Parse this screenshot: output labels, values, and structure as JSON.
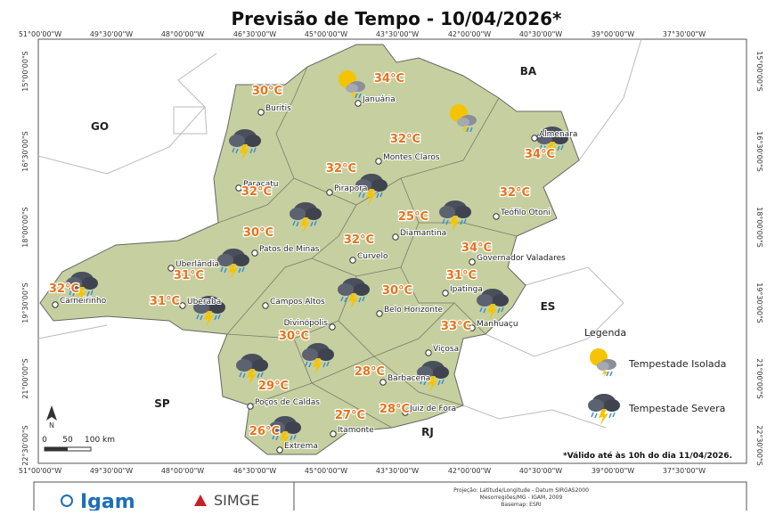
{
  "title": "Previsão de Tempo - 10/04/2026*",
  "longitude_labels": [
    "51°00'00\"W",
    "49°30'00\"W",
    "48°00'00\"W",
    "46°30'00\"W",
    "45°00'00\"W",
    "43°30'00\"W",
    "42°00'00\"W",
    "40°30'00\"W",
    "39°00'00\"W",
    "37°30'00\"W"
  ],
  "latitude_labels": [
    "15°00'00\"S",
    "16°30'00\"S",
    "18°00'00\"S",
    "19°30'00\"S",
    "21°00'00\"S",
    "22°30'00\"S"
  ],
  "states": [
    "GO",
    "BA",
    "ES",
    "SP",
    "RJ"
  ],
  "cities": [
    {
      "name": "Buritis",
      "temp": "30°C"
    },
    {
      "name": "Januária",
      "temp": "34°C"
    },
    {
      "name": "Almenara",
      "temp": "34°C"
    },
    {
      "name": "Montes Claros",
      "temp": "32°C"
    },
    {
      "name": "Pirapora",
      "temp": "32°C"
    },
    {
      "name": "Paracatu",
      "temp": "32°C"
    },
    {
      "name": "Teófilo Otoni",
      "temp": "32°C"
    },
    {
      "name": "Diamantina",
      "temp": "25°C"
    },
    {
      "name": "Patos de Minas",
      "temp": "30°C"
    },
    {
      "name": "Curvelo",
      "temp": "32°C"
    },
    {
      "name": "Governador Valadares",
      "temp": "34°C"
    },
    {
      "name": "Uberlândia",
      "temp": "31°C"
    },
    {
      "name": "Carneirinho",
      "temp": "32°C"
    },
    {
      "name": "Ipatinga",
      "temp": "31°C"
    },
    {
      "name": "Campos Altos"
    },
    {
      "name": "Uberaba",
      "temp": "31°C"
    },
    {
      "name": "Belo Horizonte",
      "temp": "30°C"
    },
    {
      "name": "Divinópolis"
    },
    {
      "name": "Manhuaçu",
      "temp": "33°C"
    },
    {
      "name": "Viçosa"
    },
    {
      "name": "Barbacena",
      "temp": "28°C"
    },
    {
      "name": "Poços de Caldas",
      "temp": "29°C"
    },
    {
      "name": "Juiz de Fora",
      "temp": "28°C"
    },
    {
      "name": "Itamonte",
      "temp": "27°C"
    },
    {
      "name": "Extrema",
      "temp": "26°C"
    }
  ],
  "temperature_labels": [
    "30°C"
  ],
  "legend": {
    "title": "Legenda",
    "items": [
      "Tempestade Isolada",
      "Tempestade Severa"
    ]
  },
  "scale_bar": [
    "0",
    "50",
    "100 km"
  ],
  "north": "N",
  "note": "*Válido até às 10h do dia 11/04/2026.",
  "footer": {
    "logos": [
      "Igam",
      "SIMGE"
    ],
    "credits": [
      "Projeção: Latitude/Longitude - Datum SIRGAS2000",
      "Mesorregiões/MG - IGAM, 2009",
      "Basemap: ESRI"
    ]
  }
}
